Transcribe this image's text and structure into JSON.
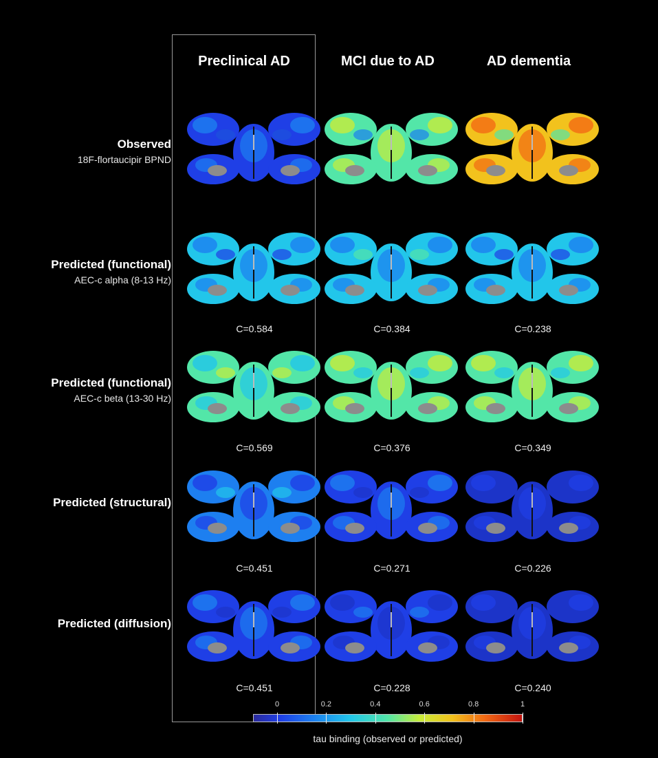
{
  "columns": [
    "Preclinical AD",
    "MCI due to AD",
    "AD dementia"
  ],
  "rows": [
    {
      "title": "Observed",
      "subtitle": "18F-flortaucipir BPND",
      "cells": [
        {
          "c": "",
          "palette": [
            "#1f3fe6",
            "#1d7ff0",
            "#1c52dc"
          ]
        },
        {
          "c": "",
          "palette": [
            "#53e6a8",
            "#c8ec3a",
            "#1d7ff0"
          ]
        },
        {
          "c": "",
          "palette": [
            "#f2c21d",
            "#f26a14",
            "#53e6a8"
          ]
        }
      ]
    },
    {
      "title": "Predicted (functional)",
      "subtitle": "AEC-c alpha (8-13 Hz)",
      "cells": [
        {
          "c": "C=0.584",
          "palette": [
            "#22c6ea",
            "#1d7ff0",
            "#1f3fe6"
          ]
        },
        {
          "c": "C=0.384",
          "palette": [
            "#22c6ea",
            "#1d7ff0",
            "#53e6a8"
          ]
        },
        {
          "c": "C=0.238",
          "palette": [
            "#22c6ea",
            "#1d7ff0",
            "#1f3fe6"
          ]
        }
      ]
    },
    {
      "title": "Predicted (functional)",
      "subtitle": "AEC-c beta (13-30 Hz)",
      "cells": [
        {
          "c": "C=0.569",
          "palette": [
            "#53e6a8",
            "#22c6ea",
            "#c8ec3a"
          ]
        },
        {
          "c": "C=0.376",
          "palette": [
            "#53e6a8",
            "#c8ec3a",
            "#22c6ea"
          ]
        },
        {
          "c": "C=0.349",
          "palette": [
            "#53e6a8",
            "#c8ec3a",
            "#22c6ea"
          ]
        }
      ]
    },
    {
      "title": "Predicted (structural)",
      "subtitle": "",
      "cells": [
        {
          "c": "C=0.451",
          "palette": [
            "#1d7ff0",
            "#1f3fe6",
            "#22c6ea"
          ]
        },
        {
          "c": "C=0.271",
          "palette": [
            "#1f3fe6",
            "#1d7ff0",
            "#1c34c8"
          ]
        },
        {
          "c": "C=0.226",
          "palette": [
            "#1c34c8",
            "#1f3fe6",
            "#1c34c8"
          ]
        }
      ]
    },
    {
      "title": "Predicted (diffusion)",
      "subtitle": "",
      "cells": [
        {
          "c": "C=0.451",
          "palette": [
            "#1f3fe6",
            "#1d7ff0",
            "#1c34c8"
          ]
        },
        {
          "c": "C=0.228",
          "palette": [
            "#1f3fe6",
            "#1c34c8",
            "#1d7ff0"
          ]
        },
        {
          "c": "C=0.240",
          "palette": [
            "#1c34c8",
            "#1f3fe6",
            "#1c34c8"
          ]
        }
      ]
    }
  ],
  "colorbar": {
    "ticks": [
      "0",
      "0.2",
      "0.4",
      "0.6",
      "0.8",
      "1"
    ],
    "tick_values": [
      0,
      0.2,
      0.4,
      0.6,
      0.8,
      1
    ],
    "title": "tau binding (observed or predicted)"
  }
}
